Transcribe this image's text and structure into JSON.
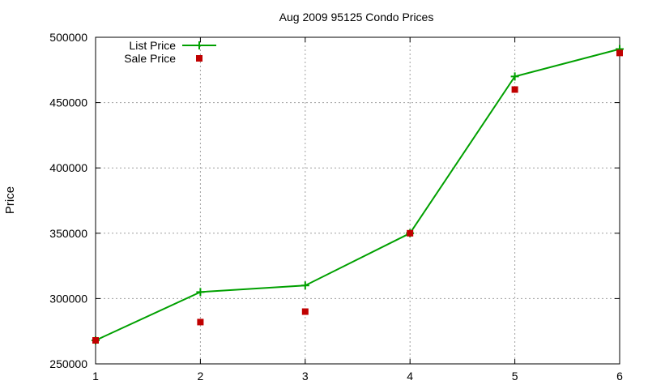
{
  "chart_data": {
    "type": "line",
    "title": "Aug 2009 95125 Condo Prices",
    "xlabel": "",
    "ylabel": "Price",
    "x": [
      1,
      2,
      3,
      4,
      5,
      6
    ],
    "xlim": [
      1,
      6
    ],
    "ylim": [
      250000,
      500000
    ],
    "xticks": [
      "1",
      "2",
      "3",
      "4",
      "5",
      "6"
    ],
    "yticks": [
      "250000",
      "300000",
      "350000",
      "400000",
      "450000",
      "500000"
    ],
    "grid": true,
    "legend_position": "top-left",
    "series": [
      {
        "name": "List Price",
        "style": "line-with-plus-markers",
        "color": "#00a000",
        "x": [
          1,
          2,
          3,
          4,
          5,
          6
        ],
        "values": [
          268000,
          305000,
          310000,
          350000,
          470000,
          491000
        ]
      },
      {
        "name": "Sale Price",
        "style": "square-points",
        "color": "#c00000",
        "x": [
          1,
          2,
          3,
          4,
          5,
          6
        ],
        "values": [
          268000,
          282000,
          290000,
          350000,
          460000,
          488000
        ]
      }
    ]
  }
}
